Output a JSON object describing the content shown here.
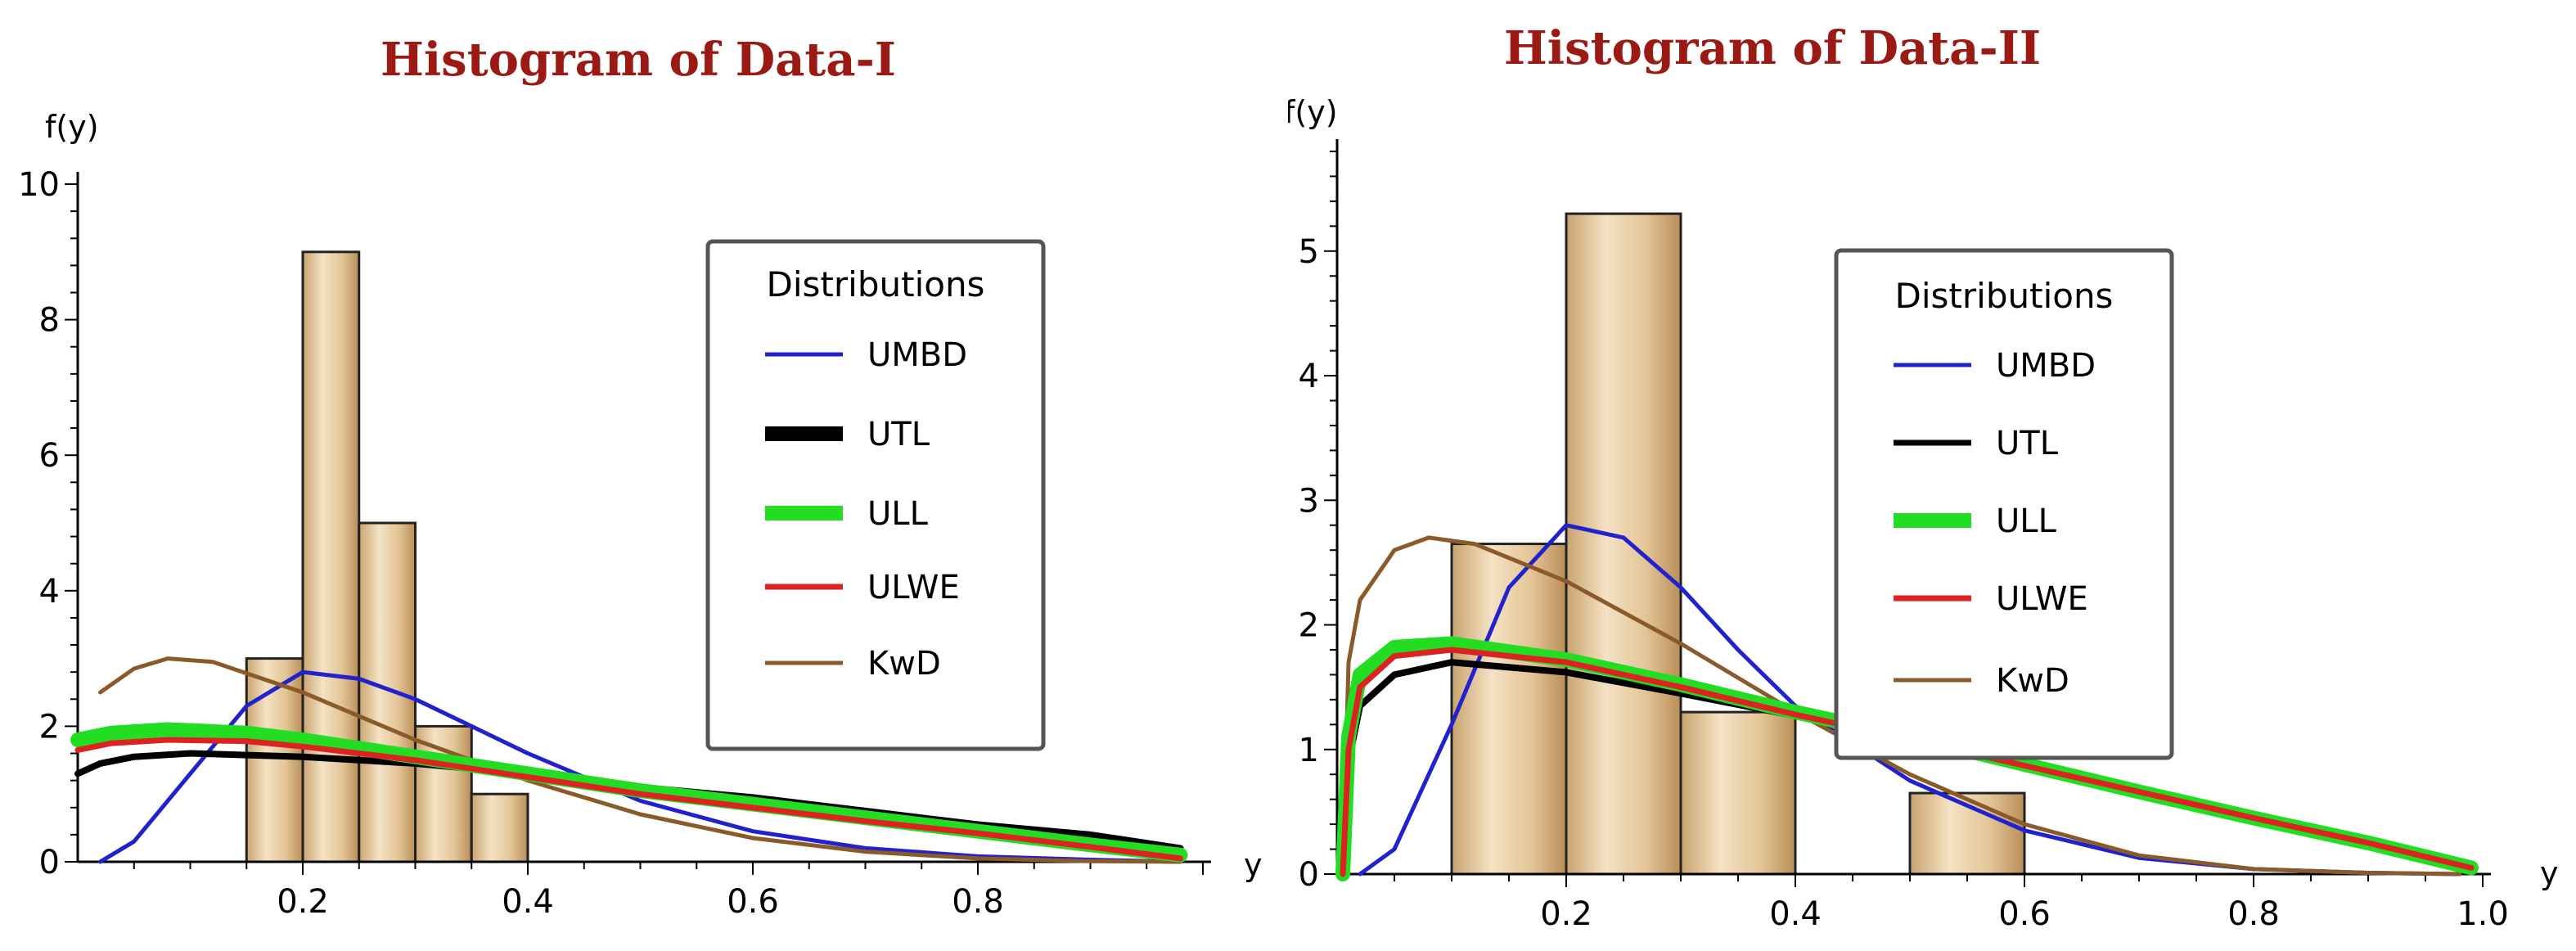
{
  "chart_data": [
    {
      "type": "histogram",
      "title": "Histogram of Data-I",
      "ylabel": "f(y)",
      "xlabel": "y",
      "xlim": [
        0,
        1.0
      ],
      "ylim": [
        0,
        10
      ],
      "xticks": [
        0.2,
        0.4,
        0.6,
        0.8
      ],
      "yticks": [
        0,
        2,
        4,
        6,
        8,
        10
      ],
      "bins": [
        {
          "x0": 0.15,
          "x1": 0.2,
          "value": 3
        },
        {
          "x0": 0.2,
          "x1": 0.25,
          "value": 9
        },
        {
          "x0": 0.25,
          "x1": 0.3,
          "value": 5
        },
        {
          "x0": 0.3,
          "x1": 0.35,
          "value": 2
        },
        {
          "x0": 0.35,
          "x1": 0.4,
          "value": 1
        }
      ],
      "legend": {
        "title": "Distributions",
        "position": "top-right",
        "entries": [
          {
            "label": "UMBD",
            "color": "#2222cc"
          },
          {
            "label": "UTL",
            "color": "#000000"
          },
          {
            "label": "ULL",
            "color": "#22dd22"
          },
          {
            "label": "ULWE",
            "color": "#dd2222"
          },
          {
            "label": "KwD",
            "color": "#8b5a2b"
          }
        ]
      },
      "series": [
        {
          "name": "UMBD",
          "color": "#2222cc",
          "points": [
            [
              0.02,
              0.0
            ],
            [
              0.05,
              0.3
            ],
            [
              0.1,
              1.3
            ],
            [
              0.15,
              2.3
            ],
            [
              0.2,
              2.8
            ],
            [
              0.25,
              2.7
            ],
            [
              0.3,
              2.4
            ],
            [
              0.35,
              2.0
            ],
            [
              0.4,
              1.6
            ],
            [
              0.5,
              0.9
            ],
            [
              0.6,
              0.45
            ],
            [
              0.7,
              0.2
            ],
            [
              0.8,
              0.08
            ],
            [
              0.9,
              0.03
            ],
            [
              0.98,
              0.0
            ]
          ]
        },
        {
          "name": "UTL",
          "color": "#000000",
          "points": [
            [
              0.0,
              1.3
            ],
            [
              0.02,
              1.45
            ],
            [
              0.05,
              1.55
            ],
            [
              0.1,
              1.6
            ],
            [
              0.2,
              1.55
            ],
            [
              0.3,
              1.45
            ],
            [
              0.4,
              1.3
            ],
            [
              0.5,
              1.1
            ],
            [
              0.6,
              0.95
            ],
            [
              0.7,
              0.75
            ],
            [
              0.8,
              0.55
            ],
            [
              0.9,
              0.4
            ],
            [
              0.98,
              0.2
            ]
          ]
        },
        {
          "name": "ULL",
          "color": "#22dd22",
          "points": [
            [
              0.0,
              1.8
            ],
            [
              0.03,
              1.9
            ],
            [
              0.08,
              1.95
            ],
            [
              0.15,
              1.9
            ],
            [
              0.2,
              1.8
            ],
            [
              0.3,
              1.55
            ],
            [
              0.4,
              1.3
            ],
            [
              0.5,
              1.05
            ],
            [
              0.6,
              0.85
            ],
            [
              0.7,
              0.65
            ],
            [
              0.8,
              0.45
            ],
            [
              0.9,
              0.25
            ],
            [
              0.98,
              0.1
            ]
          ]
        },
        {
          "name": "ULWE",
          "color": "#dd2222",
          "points": [
            [
              0.0,
              1.65
            ],
            [
              0.03,
              1.75
            ],
            [
              0.08,
              1.8
            ],
            [
              0.15,
              1.78
            ],
            [
              0.2,
              1.7
            ],
            [
              0.3,
              1.5
            ],
            [
              0.4,
              1.25
            ],
            [
              0.5,
              1.0
            ],
            [
              0.6,
              0.8
            ],
            [
              0.7,
              0.6
            ],
            [
              0.8,
              0.42
            ],
            [
              0.9,
              0.22
            ],
            [
              0.98,
              0.05
            ]
          ]
        },
        {
          "name": "KwD",
          "color": "#8b5a2b",
          "points": [
            [
              0.02,
              2.5
            ],
            [
              0.05,
              2.85
            ],
            [
              0.08,
              3.0
            ],
            [
              0.12,
              2.95
            ],
            [
              0.2,
              2.5
            ],
            [
              0.3,
              1.8
            ],
            [
              0.4,
              1.2
            ],
            [
              0.5,
              0.7
            ],
            [
              0.6,
              0.35
            ],
            [
              0.7,
              0.15
            ],
            [
              0.8,
              0.05
            ],
            [
              0.9,
              0.01
            ],
            [
              0.98,
              0.0
            ]
          ]
        }
      ]
    },
    {
      "type": "histogram",
      "title": "Histogram of Data-II",
      "ylabel": "f(y)",
      "xlabel": "y",
      "xlim": [
        0,
        1.0
      ],
      "ylim": [
        0,
        5.8
      ],
      "xticks": [
        0.2,
        0.4,
        0.6,
        0.8,
        1.0
      ],
      "yticks": [
        0,
        1,
        2,
        3,
        4,
        5
      ],
      "bins": [
        {
          "x0": 0.1,
          "x1": 0.2,
          "value": 2.65
        },
        {
          "x0": 0.2,
          "x1": 0.3,
          "value": 5.3
        },
        {
          "x0": 0.3,
          "x1": 0.4,
          "value": 1.3
        },
        {
          "x0": 0.5,
          "x1": 0.6,
          "value": 0.65
        }
      ],
      "legend": {
        "title": "Distributions",
        "position": "top-right",
        "entries": [
          {
            "label": "UMBD",
            "color": "#2222cc"
          },
          {
            "label": "UTL",
            "color": "#000000"
          },
          {
            "label": "ULL",
            "color": "#22dd22"
          },
          {
            "label": "ULWE",
            "color": "#dd2222"
          },
          {
            "label": "KwD",
            "color": "#8b5a2b"
          }
        ]
      },
      "series": [
        {
          "name": "UMBD",
          "color": "#2222cc",
          "points": [
            [
              0.02,
              0.0
            ],
            [
              0.05,
              0.2
            ],
            [
              0.1,
              1.2
            ],
            [
              0.15,
              2.3
            ],
            [
              0.2,
              2.8
            ],
            [
              0.25,
              2.7
            ],
            [
              0.3,
              2.3
            ],
            [
              0.35,
              1.8
            ],
            [
              0.4,
              1.35
            ],
            [
              0.5,
              0.75
            ],
            [
              0.6,
              0.35
            ],
            [
              0.7,
              0.13
            ],
            [
              0.8,
              0.04
            ],
            [
              0.9,
              0.01
            ],
            [
              0.98,
              0.0
            ]
          ]
        },
        {
          "name": "UTL",
          "color": "#000000",
          "points": [
            [
              0.005,
              0.0
            ],
            [
              0.01,
              0.9
            ],
            [
              0.02,
              1.35
            ],
            [
              0.05,
              1.6
            ],
            [
              0.1,
              1.7
            ],
            [
              0.2,
              1.62
            ],
            [
              0.3,
              1.45
            ],
            [
              0.4,
              1.27
            ],
            [
              0.5,
              1.08
            ],
            [
              0.6,
              0.88
            ],
            [
              0.7,
              0.66
            ],
            [
              0.8,
              0.45
            ],
            [
              0.9,
              0.24
            ],
            [
              0.99,
              0.05
            ]
          ]
        },
        {
          "name": "ULL",
          "color": "#22dd22",
          "points": [
            [
              0.005,
              0.0
            ],
            [
              0.01,
              1.1
            ],
            [
              0.02,
              1.6
            ],
            [
              0.05,
              1.82
            ],
            [
              0.1,
              1.85
            ],
            [
              0.2,
              1.72
            ],
            [
              0.3,
              1.52
            ],
            [
              0.4,
              1.3
            ],
            [
              0.5,
              1.1
            ],
            [
              0.6,
              0.88
            ],
            [
              0.7,
              0.66
            ],
            [
              0.8,
              0.45
            ],
            [
              0.9,
              0.25
            ],
            [
              0.99,
              0.05
            ]
          ]
        },
        {
          "name": "ULWE",
          "color": "#dd2222",
          "points": [
            [
              0.005,
              0.0
            ],
            [
              0.01,
              1.0
            ],
            [
              0.02,
              1.5
            ],
            [
              0.05,
              1.75
            ],
            [
              0.1,
              1.8
            ],
            [
              0.2,
              1.7
            ],
            [
              0.3,
              1.5
            ],
            [
              0.4,
              1.28
            ],
            [
              0.5,
              1.08
            ],
            [
              0.6,
              0.87
            ],
            [
              0.7,
              0.66
            ],
            [
              0.8,
              0.45
            ],
            [
              0.9,
              0.25
            ],
            [
              0.99,
              0.05
            ]
          ]
        },
        {
          "name": "KwD",
          "color": "#8b5a2b",
          "points": [
            [
              0.005,
              0.0
            ],
            [
              0.01,
              1.7
            ],
            [
              0.02,
              2.2
            ],
            [
              0.05,
              2.6
            ],
            [
              0.08,
              2.7
            ],
            [
              0.12,
              2.65
            ],
            [
              0.2,
              2.35
            ],
            [
              0.3,
              1.85
            ],
            [
              0.4,
              1.3
            ],
            [
              0.5,
              0.8
            ],
            [
              0.6,
              0.4
            ],
            [
              0.7,
              0.15
            ],
            [
              0.8,
              0.04
            ],
            [
              0.9,
              0.01
            ],
            [
              0.98,
              0.0
            ]
          ]
        }
      ]
    }
  ]
}
